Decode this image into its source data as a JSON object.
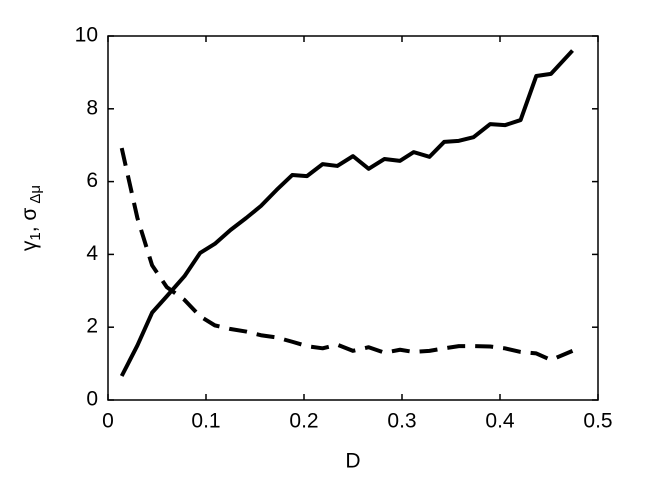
{
  "chart_data": {
    "type": "line",
    "xlabel": "D",
    "ylabel": {
      "gamma": "γ",
      "gamma_sub": "1",
      "sep": ", ",
      "sigma": "σ",
      "sigma_sub": "Δμ"
    },
    "x": [
      0.014,
      0.03,
      0.045,
      0.06,
      0.078,
      0.094,
      0.109,
      0.125,
      0.141,
      0.156,
      0.172,
      0.188,
      0.203,
      0.219,
      0.234,
      0.25,
      0.266,
      0.282,
      0.298,
      0.312,
      0.328,
      0.343,
      0.358,
      0.373,
      0.39,
      0.405,
      0.421,
      0.437,
      0.452,
      0.474
    ],
    "series": [
      {
        "color": "#000000",
        "dash": false,
        "values": [
          0.66,
          1.5,
          2.4,
          2.85,
          3.4,
          4.04,
          4.29,
          4.67,
          5.0,
          5.33,
          5.77,
          6.18,
          6.15,
          6.48,
          6.43,
          6.7,
          6.35,
          6.62,
          6.57,
          6.81,
          6.68,
          7.09,
          7.12,
          7.22,
          7.58,
          7.55,
          7.69,
          8.9,
          8.96,
          9.6
        ]
      },
      {
        "color": "#000000",
        "dash": true,
        "values": [
          6.92,
          5.0,
          3.7,
          3.1,
          2.75,
          2.3,
          2.05,
          1.95,
          1.88,
          1.78,
          1.72,
          1.6,
          1.48,
          1.42,
          1.52,
          1.35,
          1.45,
          1.3,
          1.38,
          1.32,
          1.35,
          1.42,
          1.48,
          1.48,
          1.47,
          1.42,
          1.32,
          1.28,
          1.1,
          1.35
        ]
      }
    ],
    "xlim": [
      0,
      0.5
    ],
    "xticks": [
      0,
      0.1,
      0.2,
      0.3,
      0.4,
      0.5
    ],
    "ylim": [
      0,
      10
    ],
    "yticks": [
      0,
      2,
      4,
      6,
      8,
      10
    ]
  }
}
